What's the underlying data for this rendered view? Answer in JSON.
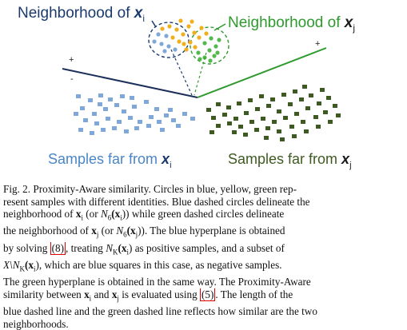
{
  "figure": {
    "label_neighborhood_i": "Neighborhood of ",
    "label_neighborhood_i_var": "x",
    "label_neighborhood_i_sub": "i",
    "label_neighborhood_j": "Neighborhood of ",
    "label_neighborhood_j_var": "x",
    "label_neighborhood_j_sub": "j",
    "label_far_i": "Samples far from ",
    "label_far_i_var": "x",
    "label_far_i_sub": "i",
    "label_far_j": "Samples far from ",
    "label_far_j_var": "x",
    "label_far_j_sub": "j",
    "plus_left": "+",
    "minus_left": "-",
    "plus_right": "+",
    "colors": {
      "blue_text": "#1a3a6e",
      "green_text": "#2e9a2e",
      "light_blue": "#7fa8d8",
      "blue_line": "#1c2f5a",
      "green_line": "#2e9a2e",
      "dark_green_square": "#3e5a22",
      "yellow": "#f0b01e"
    }
  },
  "caption": {
    "lines": [
      [
        "Fig. 2.    Proximity-Aware similarity. Circles in blue, yellow, green rep-"
      ],
      [
        "resent samples with different identities. Blue dashed circles delineate the"
      ],
      [
        "neighborhood of ",
        "x",
        "i",
        " (or ",
        "N",
        "6",
        "(x",
        "i",
        ")) while green dashed circles delineate"
      ],
      [
        "the neighborhood of ",
        "x",
        "j",
        " (or ",
        "N",
        "6",
        "(x",
        "j",
        ")). The blue hyperplane is obtained"
      ],
      [
        "by solving ",
        "(8)",
        ", treating ",
        "N",
        "K",
        "(x",
        "i",
        ") as positive samples, and a subset of"
      ],
      [
        "X\\N",
        "K",
        "(x",
        "i",
        "), which are blue squares in this case, as negative samples."
      ],
      [
        "The green hyperplane is obtained in the same way. The Proximity-Aware"
      ],
      [
        "similarity between ",
        "x",
        "i",
        " and ",
        "x",
        "j",
        " is evaluated using ",
        "(5)",
        ". The length of the"
      ],
      [
        "blue dashed line and the green dashed line reflects how similar are the two"
      ],
      [
        "neighborhoods."
      ]
    ]
  }
}
